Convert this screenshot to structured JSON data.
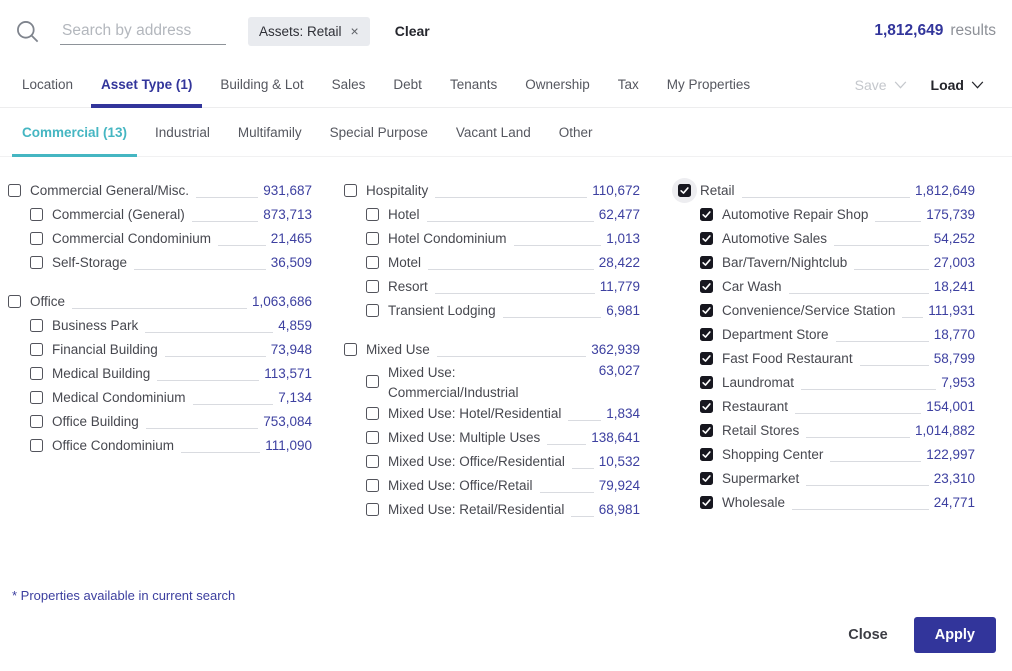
{
  "header": {
    "search_placeholder": "Search by address",
    "chip": {
      "label": "Assets: Retail",
      "remove": "×"
    },
    "clear_label": "Clear",
    "results_count": "1,812,649",
    "results_suffix": "results"
  },
  "tabs": {
    "items": [
      {
        "label": "Location",
        "active": false
      },
      {
        "label": "Asset Type (1)",
        "active": true
      },
      {
        "label": "Building & Lot",
        "active": false
      },
      {
        "label": "Sales",
        "active": false
      },
      {
        "label": "Debt",
        "active": false
      },
      {
        "label": "Tenants",
        "active": false
      },
      {
        "label": "Ownership",
        "active": false
      },
      {
        "label": "Tax",
        "active": false
      },
      {
        "label": "My Properties",
        "active": false
      }
    ],
    "save_label": "Save",
    "load_label": "Load",
    "save_disabled": true
  },
  "subtabs": [
    {
      "label": "Commercial (13)",
      "active": true
    },
    {
      "label": "Industrial",
      "active": false
    },
    {
      "label": "Multifamily",
      "active": false
    },
    {
      "label": "Special Purpose",
      "active": false
    },
    {
      "label": "Vacant Land",
      "active": false
    },
    {
      "label": "Other",
      "active": false
    }
  ],
  "columns": [
    {
      "groups": [
        {
          "label": "Commercial General/Misc.",
          "count": "931,687",
          "checked": false,
          "items": [
            {
              "label": "Commercial (General)",
              "count": "873,713",
              "checked": false
            },
            {
              "label": "Commercial Condominium",
              "count": "21,465",
              "checked": false
            },
            {
              "label": "Self-Storage",
              "count": "36,509",
              "checked": false
            }
          ]
        },
        {
          "label": "Office",
          "count": "1,063,686",
          "checked": false,
          "items": [
            {
              "label": "Business Park",
              "count": "4,859",
              "checked": false
            },
            {
              "label": "Financial Building",
              "count": "73,948",
              "checked": false
            },
            {
              "label": "Medical Building",
              "count": "113,571",
              "checked": false
            },
            {
              "label": "Medical Condominium",
              "count": "7,134",
              "checked": false
            },
            {
              "label": "Office Building",
              "count": "753,084",
              "checked": false
            },
            {
              "label": "Office Condominium",
              "count": "111,090",
              "checked": false
            }
          ]
        }
      ]
    },
    {
      "groups": [
        {
          "label": "Hospitality",
          "count": "110,672",
          "checked": false,
          "items": [
            {
              "label": "Hotel",
              "count": "62,477",
              "checked": false
            },
            {
              "label": "Hotel Condominium",
              "count": "1,013",
              "checked": false
            },
            {
              "label": "Motel",
              "count": "28,422",
              "checked": false
            },
            {
              "label": "Resort",
              "count": "11,779",
              "checked": false
            },
            {
              "label": "Transient Lodging",
              "count": "6,981",
              "checked": false
            }
          ]
        },
        {
          "label": "Mixed Use",
          "count": "362,939",
          "checked": false,
          "items": [
            {
              "label": "Mixed Use: Commercial/Industrial",
              "count": "63,027",
              "checked": false,
              "two_line": true
            },
            {
              "label": "Mixed Use: Hotel/Residential",
              "count": "1,834",
              "checked": false
            },
            {
              "label": "Mixed Use: Multiple Uses",
              "count": "138,641",
              "checked": false
            },
            {
              "label": "Mixed Use: Office/Residential",
              "count": "10,532",
              "checked": false
            },
            {
              "label": "Mixed Use: Office/Retail",
              "count": "79,924",
              "checked": false
            },
            {
              "label": "Mixed Use: Retail/Residential",
              "count": "68,981",
              "checked": false
            }
          ]
        }
      ]
    },
    {
      "groups": [
        {
          "label": "Retail",
          "count": "1,812,649",
          "checked": true,
          "halo": true,
          "items": [
            {
              "label": "Automotive Repair Shop",
              "count": "175,739",
              "checked": true
            },
            {
              "label": "Automotive Sales",
              "count": "54,252",
              "checked": true
            },
            {
              "label": "Bar/Tavern/Nightclub",
              "count": "27,003",
              "checked": true
            },
            {
              "label": "Car Wash",
              "count": "18,241",
              "checked": true
            },
            {
              "label": "Convenience/Service Station",
              "count": "111,931",
              "checked": true
            },
            {
              "label": "Department Store",
              "count": "18,770",
              "checked": true
            },
            {
              "label": "Fast Food Restaurant",
              "count": "58,799",
              "checked": true
            },
            {
              "label": "Laundromat",
              "count": "7,953",
              "checked": true
            },
            {
              "label": "Restaurant",
              "count": "154,001",
              "checked": true
            },
            {
              "label": "Retail Stores",
              "count": "1,014,882",
              "checked": true
            },
            {
              "label": "Shopping Center",
              "count": "122,997",
              "checked": true
            },
            {
              "label": "Supermarket",
              "count": "23,310",
              "checked": true
            },
            {
              "label": "Wholesale",
              "count": "24,771",
              "checked": true
            }
          ]
        }
      ]
    }
  ],
  "footer": {
    "note": "* Properties available in current search",
    "close_label": "Close",
    "apply_label": "Apply"
  },
  "colors": {
    "accent": "#32359b",
    "count": "#3d40a0",
    "teal": "#45b6c2",
    "checked_box": "#17171f",
    "chip_bg": "#e9ebef"
  }
}
